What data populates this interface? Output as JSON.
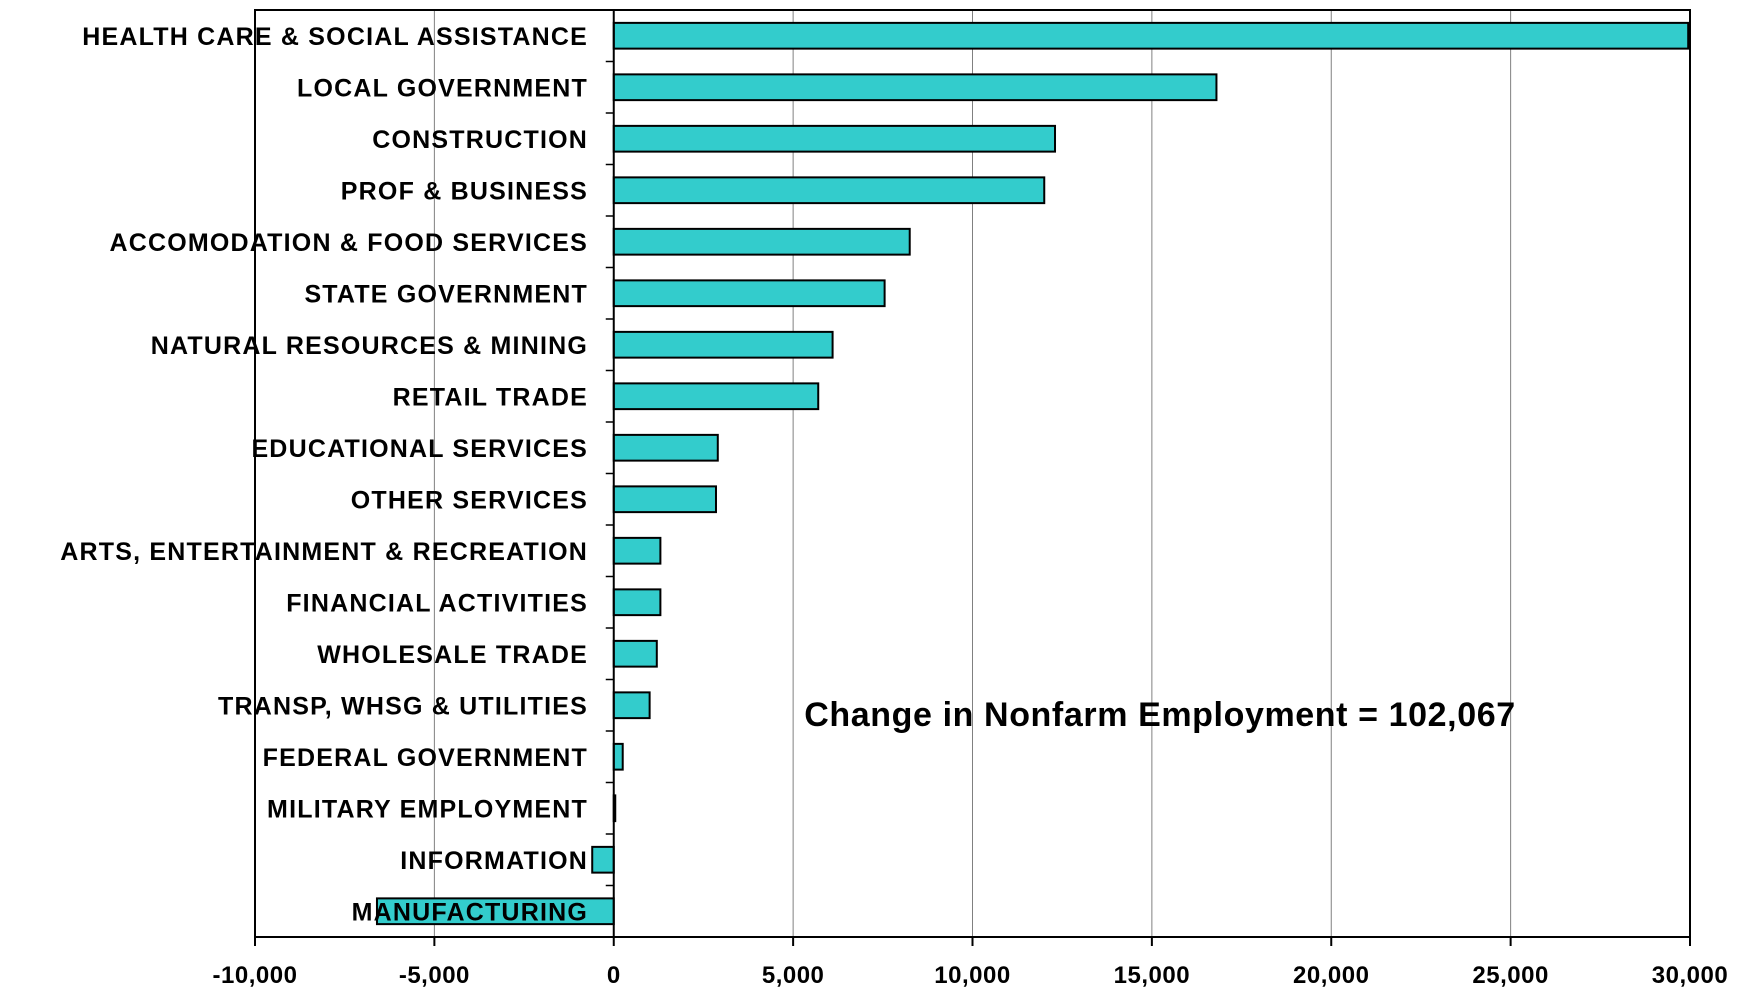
{
  "chart_data": {
    "type": "bar",
    "orientation": "horizontal",
    "categories": [
      "HEALTH CARE & SOCIAL ASSISTANCE",
      "LOCAL GOVERNMENT",
      "CONSTRUCTION",
      "PROF & BUSINESS",
      "ACCOMODATION & FOOD SERVICES",
      "STATE GOVERNMENT",
      "NATURAL RESOURCES & MINING",
      "RETAIL TRADE",
      "EDUCATIONAL SERVICES",
      "OTHER SERVICES",
      "ARTS, ENTERTAINMENT & RECREATION",
      "FINANCIAL ACTIVITIES",
      "WHOLESALE TRADE",
      "TRANSP, WHSG & UTILITIES",
      "FEDERAL GOVERNMENT",
      "MILITARY EMPLOYMENT",
      "INFORMATION",
      "MANUFACTURING"
    ],
    "values": [
      29950,
      16800,
      12300,
      12000,
      8250,
      7550,
      6100,
      5700,
      2900,
      2850,
      1300,
      1300,
      1200,
      1000,
      250,
      20,
      -600,
      -6600
    ],
    "xlim": [
      -10000,
      30000
    ],
    "xticks": [
      -10000,
      -5000,
      0,
      5000,
      10000,
      15000,
      20000,
      25000,
      30000
    ],
    "xtick_labels": [
      "-10,000",
      "-5,000",
      "0",
      "5,000",
      "10,000",
      "15,000",
      "20,000",
      "25,000",
      "30,000"
    ],
    "annotation": "Change in Nonfarm Employment  = 102,067",
    "grid": "vertical",
    "bar_color": "#33CCCC",
    "bar_edge_color": "#000000"
  }
}
